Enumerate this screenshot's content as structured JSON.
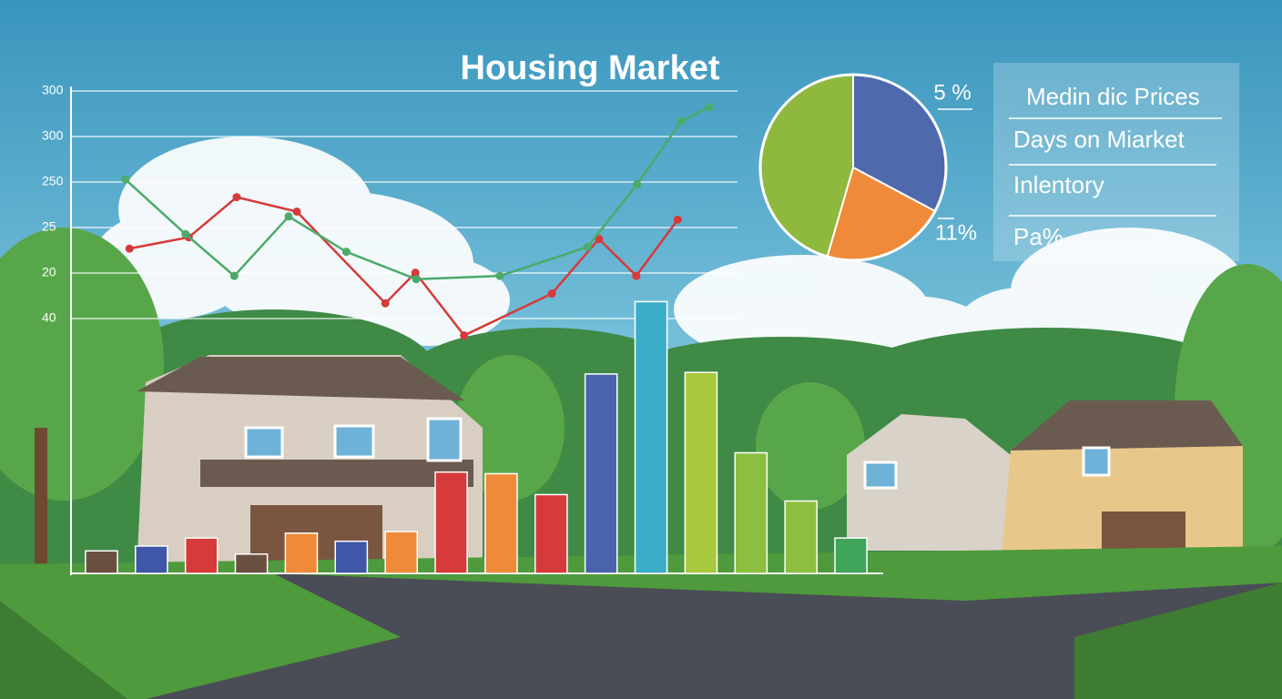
{
  "chart_data": [
    {
      "type": "bar",
      "title": "Housing Market",
      "categories": [
        null,
        null,
        null,
        null,
        null,
        null,
        null,
        null,
        null,
        null,
        null,
        null,
        null,
        null,
        null,
        null
      ],
      "values": [
        14,
        17,
        22,
        12,
        25,
        20,
        26,
        63,
        62,
        49,
        124,
        169,
        125,
        75,
        45,
        22
      ],
      "colors": [
        "#6b5040",
        "#3f57a6",
        "#d63a3a",
        "#6b5040",
        "#ee8a3a",
        "#3f57a6",
        "#ee8a3a",
        "#d63a3a",
        "#ee8a3a",
        "#d63a3a",
        "#4a63ad",
        "#3aaec8",
        "#a8c83e",
        "#8cbf3f",
        "#8cbf3f",
        "#3ea55a"
      ],
      "ylim": [
        0,
        300
      ],
      "y_labels": [
        "300",
        "300",
        "250",
        "25",
        "20",
        "40"
      ]
    },
    {
      "type": "line",
      "xlim": [
        0,
        100
      ],
      "ylim": [
        0,
        300
      ],
      "series": [
        {
          "color": "#d63a3a",
          "x": [
            7.2,
            14.5,
            20.4,
            27.8,
            38.7,
            42.4,
            48.4,
            59.2,
            65.0,
            69.6,
            74.7
          ],
          "values": [
            202,
            209,
            234,
            225,
            168,
            187,
            148,
            174,
            208,
            185,
            220
          ]
        },
        {
          "color": "#4caa6a",
          "x": [
            6.7,
            14.1,
            20.1,
            26.8,
            33.9,
            42.5,
            52.8,
            63.6,
            69.7,
            75.1,
            78.6
          ],
          "values": [
            245,
            211,
            185,
            222,
            200,
            183,
            185,
            203,
            242,
            281,
            290
          ]
        }
      ]
    },
    {
      "type": "pie",
      "values": [
        32.8,
        21.7,
        45.5
      ],
      "colors": [
        "#4f69ad",
        "#ee8a3a",
        "#8fb83f"
      ],
      "annotations": [
        "5 %",
        "11%"
      ],
      "legend": [
        "Medin dic Prices",
        "Days on Miarket",
        "Inlentory",
        "Pa%"
      ]
    }
  ]
}
